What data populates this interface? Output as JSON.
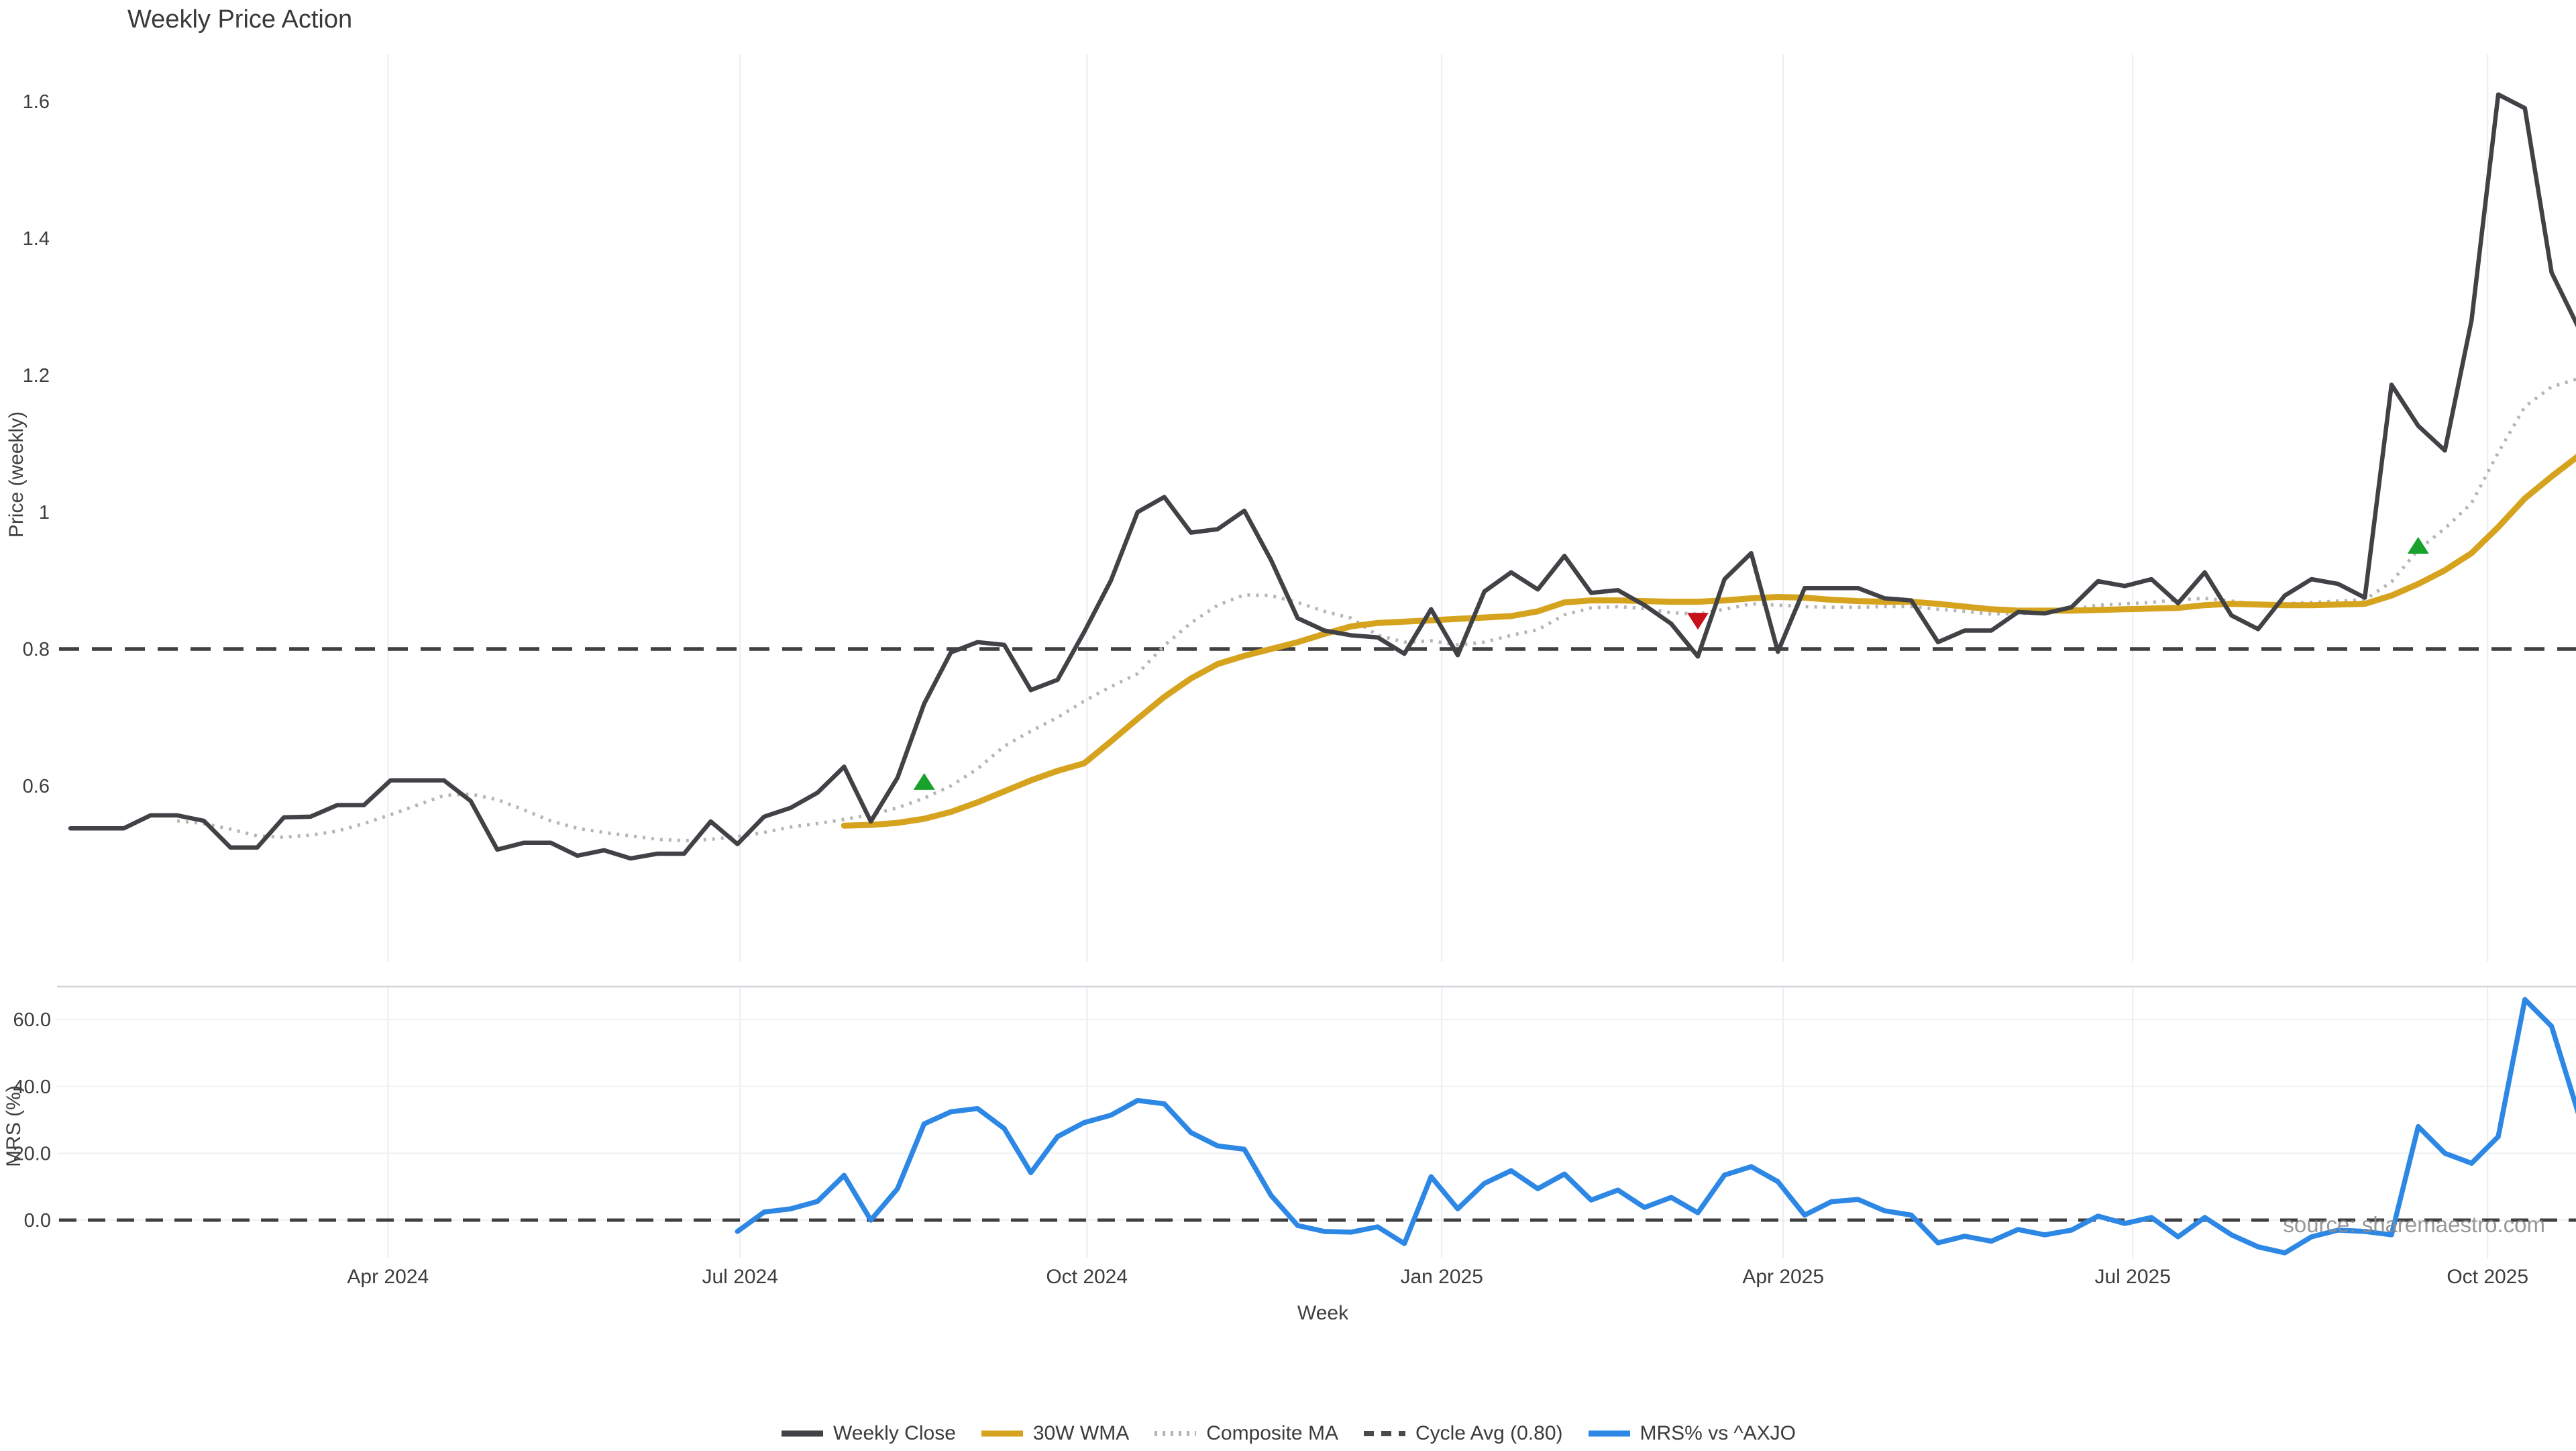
{
  "source_note": "source: sharemaestro.com",
  "colors": {
    "background": "#ffffff",
    "grid": "#ececf1",
    "grid_h": "#eef0f2",
    "divider": "#d2d2d9",
    "tick_text": "#3d3d3d",
    "title_text": "#3a3a3a",
    "marker_up": "#18a12b",
    "marker_down": "#c8101b"
  },
  "legend": [
    {
      "label": "Weekly Close",
      "color": "#414246",
      "style": "solid"
    },
    {
      "label": "30W WMA",
      "color": "#d6a31e",
      "style": "solid"
    },
    {
      "label": "Composite MA",
      "color": "#b5b5b5",
      "style": "dotted"
    },
    {
      "label": "Cycle Avg (0.80)",
      "color": "#4a4a4a",
      "style": "dashed"
    },
    {
      "label": "MRS% vs ^AXJO",
      "color": "#2d87e4",
      "style": "solid"
    }
  ],
  "chart_data": [
    {
      "type": "line",
      "panel": "price",
      "title": "Weekly Price Action",
      "ylabel": "Price (weekly)",
      "xlabel": "Week",
      "grid": "vertical only",
      "legend_position": "bottom center",
      "ylim": [
        0.35,
        1.67
      ],
      "xlim_weeks": [
        -0.5,
        93.9
      ],
      "y_ticks": [
        {
          "label": "1.6",
          "value": 1.6
        },
        {
          "label": "1.4",
          "value": 1.4
        },
        {
          "label": "1.2",
          "value": 1.2
        },
        {
          "label": "1",
          "value": 1.0
        },
        {
          "label": "0.8",
          "value": 0.8
        },
        {
          "label": "0.6",
          "value": 0.6
        }
      ],
      "x_ticks": [
        {
          "label": "Apr 2024",
          "week": 11.9
        },
        {
          "label": "Jul 2024",
          "week": 25.1
        },
        {
          "label": "Oct 2024",
          "week": 38.1
        },
        {
          "label": "Jan 2025",
          "week": 51.4
        },
        {
          "label": "Apr 2025",
          "week": 64.2
        },
        {
          "label": "Jul 2025",
          "week": 77.3
        },
        {
          "label": "Oct 2025",
          "week": 90.6
        }
      ],
      "series": [
        {
          "name": "Weekly Close",
          "color": "#414246",
          "style": "solid",
          "start_week": 0,
          "values": [
            0.538,
            0.538,
            0.538,
            0.557,
            0.557,
            0.549,
            0.51,
            0.51,
            0.554,
            0.555,
            0.572,
            0.572,
            0.608,
            0.608,
            0.608,
            0.578,
            0.507,
            0.517,
            0.517,
            0.498,
            0.506,
            0.494,
            0.501,
            0.501,
            0.548,
            0.515,
            0.555,
            0.568,
            0.59,
            0.628,
            0.548,
            0.612,
            0.72,
            0.795,
            0.81,
            0.806,
            0.74,
            0.755,
            0.825,
            0.9,
            1.0,
            1.022,
            0.97,
            0.975,
            1.002,
            0.93,
            0.845,
            0.827,
            0.82,
            0.817,
            0.793,
            0.858,
            0.791,
            0.884,
            0.912,
            0.887,
            0.936,
            0.882,
            0.886,
            0.864,
            0.837,
            0.789,
            0.902,
            0.94,
            0.796,
            0.889,
            0.889,
            0.889,
            0.874,
            0.871,
            0.81,
            0.827,
            0.827,
            0.854,
            0.852,
            0.861,
            0.899,
            0.892,
            0.902,
            0.867,
            0.912,
            0.849,
            0.829,
            0.878,
            0.902,
            0.895,
            0.875,
            1.186,
            1.126,
            1.09,
            1.28,
            1.61,
            1.59,
            1.35,
            1.27
          ]
        },
        {
          "name": "30W WMA",
          "color": "#d6a31e",
          "style": "solid",
          "start_week": 29,
          "values": [
            0.542,
            0.543,
            0.546,
            0.552,
            0.562,
            0.576,
            0.592,
            0.608,
            0.622,
            0.633,
            0.665,
            0.698,
            0.73,
            0.757,
            0.778,
            0.79,
            0.8,
            0.81,
            0.822,
            0.833,
            0.838,
            0.84,
            0.842,
            0.844,
            0.846,
            0.848,
            0.855,
            0.868,
            0.871,
            0.871,
            0.87,
            0.869,
            0.869,
            0.871,
            0.874,
            0.876,
            0.875,
            0.872,
            0.87,
            0.869,
            0.869,
            0.866,
            0.862,
            0.858,
            0.856,
            0.856,
            0.856,
            0.857,
            0.858,
            0.859,
            0.86,
            0.864,
            0.866,
            0.865,
            0.864,
            0.864,
            0.865,
            0.866,
            0.878,
            0.895,
            0.915,
            0.94,
            0.978,
            1.02,
            1.052,
            1.082
          ]
        },
        {
          "name": "Composite MA",
          "color": "#b5b5b5",
          "style": "dotted",
          "start_week": 4,
          "values": [
            0.549,
            0.545,
            0.537,
            0.527,
            0.525,
            0.528,
            0.534,
            0.545,
            0.558,
            0.572,
            0.586,
            0.588,
            0.58,
            0.565,
            0.549,
            0.538,
            0.532,
            0.527,
            0.522,
            0.52,
            0.522,
            0.526,
            0.532,
            0.54,
            0.545,
            0.551,
            0.558,
            0.568,
            0.582,
            0.6,
            0.625,
            0.658,
            0.68,
            0.7,
            0.724,
            0.745,
            0.764,
            0.805,
            0.838,
            0.864,
            0.879,
            0.878,
            0.868,
            0.855,
            0.845,
            0.82,
            0.81,
            0.812,
            0.806,
            0.81,
            0.82,
            0.828,
            0.85,
            0.86,
            0.862,
            0.859,
            0.853,
            0.851,
            0.858,
            0.866,
            0.864,
            0.862,
            0.861,
            0.861,
            0.862,
            0.862,
            0.858,
            0.855,
            0.851,
            0.852,
            0.852,
            0.858,
            0.864,
            0.866,
            0.868,
            0.872,
            0.874,
            0.87,
            0.865,
            0.866,
            0.868,
            0.87,
            0.872,
            0.898,
            0.945,
            0.976,
            1.013,
            1.087,
            1.154,
            1.183,
            1.195
          ]
        },
        {
          "name": "Cycle Avg (0.80)",
          "color": "#404040",
          "style": "dashed",
          "constant": 0.8
        }
      ],
      "markers": [
        {
          "shape": "triangle-up",
          "color": "#18a12b",
          "week": 32,
          "value": 0.605
        },
        {
          "shape": "triangle-down",
          "color": "#c8101b",
          "week": 61,
          "value": 0.842
        },
        {
          "shape": "triangle-up",
          "color": "#18a12b",
          "week": 88,
          "value": 0.95
        }
      ]
    },
    {
      "type": "line",
      "panel": "mrs",
      "ylabel": "MRS (%)",
      "xlabel": "Week",
      "grid": "horizontal + vertical",
      "ylim": [
        -11.5,
        69.9
      ],
      "xlim_weeks": [
        -0.5,
        93.9
      ],
      "y_ticks": [
        {
          "label": "60.0",
          "value": 60
        },
        {
          "label": "40.0",
          "value": 40
        },
        {
          "label": "20.0",
          "value": 20
        },
        {
          "label": "0.0",
          "value": 0
        }
      ],
      "series": [
        {
          "name": "MRS% vs ^AXJO",
          "color": "#2d87e4",
          "style": "solid",
          "start_week": 25,
          "values": [
            -3.4,
            2.4,
            3.4,
            5.6,
            13.4,
            0.0,
            9.4,
            28.8,
            32.4,
            33.4,
            27.4,
            14.2,
            25.0,
            29.2,
            31.4,
            35.8,
            34.8,
            26.2,
            22.2,
            21.2,
            7.4,
            -1.6,
            -3.4,
            -3.6,
            -2.0,
            -7.0,
            13.0,
            3.4,
            11.0,
            14.8,
            9.4,
            13.8,
            6.0,
            9.0,
            3.8,
            6.8,
            2.2,
            13.5,
            16.0,
            11.5,
            1.5,
            5.5,
            6.2,
            2.8,
            1.5,
            -6.8,
            -4.8,
            -6.3,
            -2.8,
            -4.4,
            -3.0,
            1.2,
            -1.0,
            0.8,
            -5.0,
            0.8,
            -4.4,
            -8.0,
            -9.8,
            -5.0,
            -3.0,
            -3.4,
            -4.4,
            28.0,
            20.0,
            17.0,
            25.0,
            66.0,
            58.0,
            32.0
          ]
        },
        {
          "name": "Zero line",
          "color": "#404040",
          "style": "dashed",
          "constant": 0
        }
      ]
    }
  ]
}
